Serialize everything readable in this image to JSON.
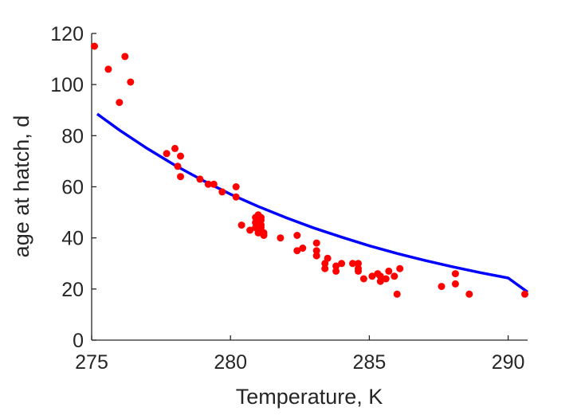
{
  "chart_data": {
    "type": "scatter",
    "title": "",
    "xlabel": "Temperature, K",
    "ylabel": "age at hatch, d",
    "xlim": [
      275,
      290.7
    ],
    "ylim": [
      0,
      120
    ],
    "xticks": [
      275,
      280,
      285,
      290
    ],
    "yticks": [
      0,
      20,
      40,
      60,
      80,
      100,
      120
    ],
    "grid": false,
    "legend": "none",
    "colors": {
      "points": "#ff0000",
      "fit": "#0000ff",
      "axis": "#262626"
    },
    "series": [
      {
        "kind": "points",
        "x": [
          275.1,
          275.6,
          276.0,
          276.2,
          276.4,
          277.7,
          278.0,
          278.1,
          278.2,
          278.2,
          278.9,
          279.2,
          279.4,
          279.7,
          280.2,
          280.2,
          280.4,
          280.7,
          280.9,
          280.9,
          280.9,
          281.0,
          281.0,
          281.0,
          281.0,
          281.0,
          281.1,
          281.1,
          281.1,
          281.1,
          281.2,
          281.2,
          281.8,
          282.4,
          282.4,
          282.6,
          283.1,
          283.1,
          283.1,
          283.4,
          283.4,
          283.5,
          283.8,
          283.8,
          284.0,
          284.4,
          284.6,
          284.6,
          284.6,
          284.8,
          285.1,
          285.3,
          285.4,
          285.4,
          285.6,
          285.7,
          285.9,
          286.0,
          286.1,
          287.6,
          288.1,
          288.1,
          288.6,
          290.6
        ],
        "y": [
          115,
          106,
          93,
          111,
          101,
          73,
          75,
          68,
          64,
          72,
          63,
          61,
          61,
          58,
          60,
          56,
          45,
          43,
          48,
          46,
          44,
          47,
          45,
          49,
          43,
          42,
          48,
          47,
          45,
          44,
          41,
          42,
          40,
          41,
          35,
          36,
          38,
          35,
          33,
          30,
          28,
          32,
          27,
          29,
          30,
          30,
          30,
          28,
          27,
          24,
          25,
          26,
          25,
          23,
          24,
          27,
          25,
          18,
          28,
          21,
          26,
          22,
          18,
          18
        ]
      },
      {
        "kind": "fit-line",
        "x": [
          275.2,
          276,
          277,
          278,
          279,
          280,
          281,
          282,
          283,
          284,
          285,
          286,
          287,
          288,
          289,
          290,
          290.7
        ],
        "y": [
          88.5,
          82.2,
          75.0,
          68.4,
          62.5,
          57.1,
          52.3,
          47.9,
          43.9,
          40.3,
          36.9,
          33.9,
          31.2,
          28.7,
          26.4,
          24.3,
          18.8
        ]
      }
    ]
  }
}
